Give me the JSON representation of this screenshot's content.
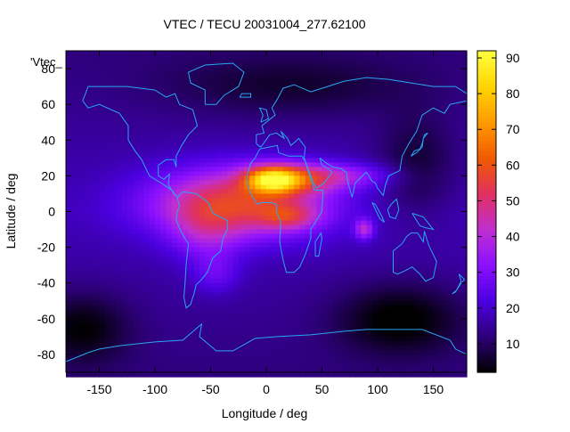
{
  "chart_data": {
    "type": "heatmap",
    "title": "VTEC / TECU 20031004_277.62100",
    "xlabel": "Longitude / deg",
    "ylabel": "Latitude / deg",
    "key_label": "'Vtec_",
    "xlim": [
      -180,
      180
    ],
    "ylim": [
      -90,
      90
    ],
    "xticks": [
      -150,
      -100,
      -50,
      0,
      50,
      100,
      150
    ],
    "yticks": [
      -80,
      -60,
      -40,
      -20,
      0,
      20,
      40,
      60,
      80
    ],
    "colorbar": {
      "min": 2,
      "max": 92,
      "ticks": [
        10,
        20,
        30,
        40,
        50,
        60,
        70,
        80,
        90
      ],
      "palette": [
        "#000000",
        "#2d0078",
        "#4b00e0",
        "#8a10ff",
        "#c02fd0",
        "#e03060",
        "#f05a00",
        "#ff9a00",
        "#ffd400",
        "#ffff40"
      ]
    },
    "grid": {
      "lon_step": 5,
      "lat_step": 2.5,
      "background_vtec": 18,
      "features": [
        {
          "name": "equatorial anomaly core",
          "lon": -25,
          "lat": 5,
          "amplitude": 38,
          "sigma_lon": 55,
          "sigma_lat": 14
        },
        {
          "name": "west africa peak",
          "lon": 5,
          "lat": 18,
          "amplitude": 45,
          "sigma_lon": 16,
          "sigma_lat": 5
        },
        {
          "name": "south america south crest",
          "lon": -55,
          "lat": -12,
          "amplitude": 12,
          "sigma_lon": 22,
          "sigma_lat": 12
        },
        {
          "name": "southern tongue",
          "lon": -45,
          "lat": -35,
          "amplitude": 10,
          "sigma_lon": 15,
          "sigma_lat": 8
        },
        {
          "name": "northern africa crest",
          "lon": 25,
          "lat": 18,
          "amplitude": 22,
          "sigma_lon": 25,
          "sigma_lat": 6
        },
        {
          "name": "asia crest",
          "lon": 70,
          "lat": 20,
          "amplitude": 16,
          "sigma_lon": 35,
          "sigma_lat": 5
        },
        {
          "name": "southern africa crest",
          "lon": 20,
          "lat": -3,
          "amplitude": 18,
          "sigma_lon": 18,
          "sigma_lat": 5
        },
        {
          "name": "indian ocean spot",
          "lon": 88,
          "lat": -10,
          "amplitude": 22,
          "sigma_lon": 6,
          "sigma_lat": 4
        },
        {
          "name": "pacific depletion",
          "lon": 135,
          "lat": 25,
          "amplitude": -10,
          "sigma_lon": 25,
          "sigma_lat": 20
        },
        {
          "name": "north polar depletion",
          "lon": 20,
          "lat": 70,
          "amplitude": -8,
          "sigma_lon": 80,
          "sigma_lat": 12
        },
        {
          "name": "south pacific depletion",
          "lon": 120,
          "lat": -60,
          "amplitude": -14,
          "sigma_lon": 40,
          "sigma_lat": 14
        },
        {
          "name": "south east pacific depletion",
          "lon": -165,
          "lat": -65,
          "amplitude": -12,
          "sigma_lon": 30,
          "sigma_lat": 14
        }
      ]
    }
  },
  "coastlines": [
    {
      "name": "north america",
      "points": [
        [
          -165,
          62
        ],
        [
          -160,
          70
        ],
        [
          -140,
          70
        ],
        [
          -125,
          70
        ],
        [
          -100,
          68
        ],
        [
          -90,
          64
        ],
        [
          -82,
          66
        ],
        [
          -78,
          60
        ],
        [
          -66,
          57
        ],
        [
          -62,
          48
        ],
        [
          -70,
          43
        ],
        [
          -76,
          37
        ],
        [
          -81,
          31
        ],
        [
          -81,
          25
        ],
        [
          -83,
          29
        ],
        [
          -90,
          29
        ],
        [
          -97,
          26
        ],
        [
          -97,
          20
        ],
        [
          -92,
          18
        ],
        [
          -87,
          21
        ],
        [
          -88,
          15
        ],
        [
          -83,
          10
        ],
        [
          -80,
          8
        ],
        [
          -85,
          12
        ],
        [
          -92,
          15
        ],
        [
          -105,
          20
        ],
        [
          -112,
          29
        ],
        [
          -118,
          34
        ],
        [
          -124,
          40
        ],
        [
          -124,
          48
        ],
        [
          -132,
          55
        ],
        [
          -150,
          60
        ],
        [
          -160,
          58
        ],
        [
          -165,
          62
        ]
      ]
    },
    {
      "name": "greenland",
      "points": [
        [
          -55,
          60
        ],
        [
          -45,
          60
        ],
        [
          -38,
          65
        ],
        [
          -25,
          70
        ],
        [
          -20,
          78
        ],
        [
          -30,
          83
        ],
        [
          -55,
          82
        ],
        [
          -70,
          78
        ],
        [
          -68,
          72
        ],
        [
          -55,
          68
        ],
        [
          -55,
          60
        ]
      ]
    },
    {
      "name": "south america",
      "points": [
        [
          -80,
          8
        ],
        [
          -75,
          11
        ],
        [
          -63,
          10
        ],
        [
          -52,
          5
        ],
        [
          -48,
          -1
        ],
        [
          -35,
          -5
        ],
        [
          -35,
          -10
        ],
        [
          -39,
          -15
        ],
        [
          -41,
          -22
        ],
        [
          -48,
          -26
        ],
        [
          -53,
          -34
        ],
        [
          -58,
          -38
        ],
        [
          -63,
          -41
        ],
        [
          -65,
          -46
        ],
        [
          -68,
          -52
        ],
        [
          -72,
          -54
        ],
        [
          -74,
          -48
        ],
        [
          -73,
          -40
        ],
        [
          -72,
          -30
        ],
        [
          -70,
          -18
        ],
        [
          -76,
          -12
        ],
        [
          -81,
          -5
        ],
        [
          -80,
          0
        ],
        [
          -78,
          3
        ],
        [
          -80,
          8
        ]
      ]
    },
    {
      "name": "eurasia",
      "points": [
        [
          -9,
          38
        ],
        [
          -9,
          43
        ],
        [
          -2,
          44
        ],
        [
          -4,
          48
        ],
        [
          2,
          51
        ],
        [
          8,
          54
        ],
        [
          5,
          58
        ],
        [
          10,
          63
        ],
        [
          15,
          69
        ],
        [
          25,
          71
        ],
        [
          40,
          67
        ],
        [
          55,
          70
        ],
        [
          70,
          73
        ],
        [
          90,
          75
        ],
        [
          110,
          74
        ],
        [
          130,
          72
        ],
        [
          150,
          70
        ],
        [
          170,
          70
        ],
        [
          180,
          66
        ]
      ]
    },
    {
      "name": "east asia",
      "points": [
        [
          180,
          62
        ],
        [
          165,
          60
        ],
        [
          160,
          55
        ],
        [
          150,
          58
        ],
        [
          140,
          54
        ],
        [
          135,
          45
        ],
        [
          128,
          38
        ],
        [
          122,
          31
        ],
        [
          120,
          23
        ],
        [
          110,
          20
        ],
        [
          107,
          15
        ],
        [
          105,
          9
        ],
        [
          100,
          13
        ],
        [
          98,
          16
        ],
        [
          95,
          17
        ],
        [
          90,
          22
        ],
        [
          88,
          21
        ],
        [
          80,
          16
        ],
        [
          77,
          8
        ],
        [
          73,
          17
        ],
        [
          72,
          22
        ],
        [
          67,
          24
        ],
        [
          60,
          25
        ],
        [
          57,
          26
        ],
        [
          52,
          28
        ],
        [
          48,
          30
        ]
      ]
    },
    {
      "name": "arabia and mediterranean",
      "points": [
        [
          48,
          30
        ],
        [
          50,
          26
        ],
        [
          56,
          24
        ],
        [
          59,
          22
        ],
        [
          52,
          16
        ],
        [
          45,
          13
        ],
        [
          43,
          15
        ],
        [
          40,
          20
        ],
        [
          35,
          28
        ],
        [
          34,
          30
        ],
        [
          35,
          36
        ],
        [
          29,
          41
        ],
        [
          26,
          39
        ],
        [
          22,
          37
        ],
        [
          19,
          41
        ],
        [
          13,
          45
        ],
        [
          16,
          41
        ],
        [
          9,
          44
        ],
        [
          3,
          43
        ],
        [
          -5,
          36
        ],
        [
          -9,
          38
        ]
      ]
    },
    {
      "name": "africa",
      "points": [
        [
          -6,
          35
        ],
        [
          10,
          37
        ],
        [
          11,
          33
        ],
        [
          20,
          31
        ],
        [
          32,
          31
        ],
        [
          35,
          28
        ],
        [
          43,
          12
        ],
        [
          51,
          12
        ],
        [
          50,
          0
        ],
        [
          40,
          -10
        ],
        [
          40,
          -15
        ],
        [
          35,
          -24
        ],
        [
          30,
          -31
        ],
        [
          25,
          -34
        ],
        [
          18,
          -34
        ],
        [
          15,
          -27
        ],
        [
          12,
          -17
        ],
        [
          13,
          -6
        ],
        [
          9,
          0
        ],
        [
          9,
          4
        ],
        [
          5,
          5
        ],
        [
          -5,
          5
        ],
        [
          -8,
          4
        ],
        [
          -15,
          11
        ],
        [
          -17,
          15
        ],
        [
          -17,
          21
        ],
        [
          -14,
          27
        ],
        [
          -10,
          30
        ],
        [
          -6,
          35
        ]
      ]
    },
    {
      "name": "madagascar",
      "points": [
        [
          44,
          -25
        ],
        [
          47,
          -25
        ],
        [
          50,
          -15
        ],
        [
          49,
          -12
        ],
        [
          44,
          -17
        ],
        [
          44,
          -25
        ]
      ]
    },
    {
      "name": "australia",
      "points": [
        [
          114,
          -22
        ],
        [
          114,
          -34
        ],
        [
          118,
          -35
        ],
        [
          125,
          -33
        ],
        [
          131,
          -31
        ],
        [
          138,
          -35
        ],
        [
          143,
          -39
        ],
        [
          150,
          -37
        ],
        [
          153,
          -28
        ],
        [
          146,
          -19
        ],
        [
          142,
          -11
        ],
        [
          141,
          -17
        ],
        [
          136,
          -12
        ],
        [
          130,
          -12
        ],
        [
          126,
          -14
        ],
        [
          122,
          -18
        ],
        [
          114,
          -22
        ]
      ]
    },
    {
      "name": "new zealand",
      "points": [
        [
          167,
          -46
        ],
        [
          171,
          -44
        ],
        [
          174,
          -41
        ],
        [
          178,
          -38
        ],
        [
          173,
          -35
        ],
        [
          175,
          -39
        ],
        [
          170,
          -45
        ],
        [
          167,
          -46
        ]
      ]
    },
    {
      "name": "sumatra",
      "points": [
        [
          95,
          5
        ],
        [
          98,
          4
        ],
        [
          104,
          -3
        ],
        [
          106,
          -6
        ],
        [
          102,
          -4
        ],
        [
          95,
          5
        ]
      ]
    },
    {
      "name": "borneo",
      "points": [
        [
          109,
          1
        ],
        [
          112,
          4
        ],
        [
          117,
          7
        ],
        [
          119,
          1
        ],
        [
          116,
          -4
        ],
        [
          111,
          -3
        ],
        [
          109,
          1
        ]
      ]
    },
    {
      "name": "new guinea",
      "points": [
        [
          131,
          -1
        ],
        [
          141,
          -3
        ],
        [
          150,
          -10
        ],
        [
          143,
          -9
        ],
        [
          138,
          -8
        ],
        [
          131,
          -1
        ]
      ]
    },
    {
      "name": "japan",
      "points": [
        [
          130,
          31
        ],
        [
          133,
          34
        ],
        [
          138,
          35
        ],
        [
          140,
          38
        ],
        [
          142,
          43
        ],
        [
          145,
          44
        ],
        [
          141,
          41
        ],
        [
          140,
          36
        ],
        [
          135,
          33
        ],
        [
          130,
          31
        ]
      ]
    },
    {
      "name": "united kingdom",
      "points": [
        [
          -5,
          50
        ],
        [
          2,
          52
        ],
        [
          0,
          57
        ],
        [
          -6,
          58
        ],
        [
          -3,
          54
        ],
        [
          -5,
          50
        ]
      ]
    },
    {
      "name": "iceland",
      "points": [
        [
          -24,
          64
        ],
        [
          -14,
          64
        ],
        [
          -14,
          66
        ],
        [
          -22,
          66
        ],
        [
          -24,
          64
        ]
      ]
    },
    {
      "name": "antarctica",
      "points": [
        [
          -180,
          -84
        ],
        [
          -160,
          -79
        ],
        [
          -150,
          -77
        ],
        [
          -130,
          -75
        ],
        [
          -100,
          -73
        ],
        [
          -75,
          -72
        ],
        [
          -62,
          -65
        ],
        [
          -58,
          -63
        ],
        [
          -60,
          -70
        ],
        [
          -45,
          -78
        ],
        [
          -30,
          -78
        ],
        [
          -10,
          -71
        ],
        [
          10,
          -70
        ],
        [
          40,
          -69
        ],
        [
          70,
          -67
        ],
        [
          90,
          -66
        ],
        [
          120,
          -66
        ],
        [
          140,
          -66
        ],
        [
          165,
          -72
        ],
        [
          170,
          -77
        ],
        [
          180,
          -80
        ]
      ]
    }
  ]
}
